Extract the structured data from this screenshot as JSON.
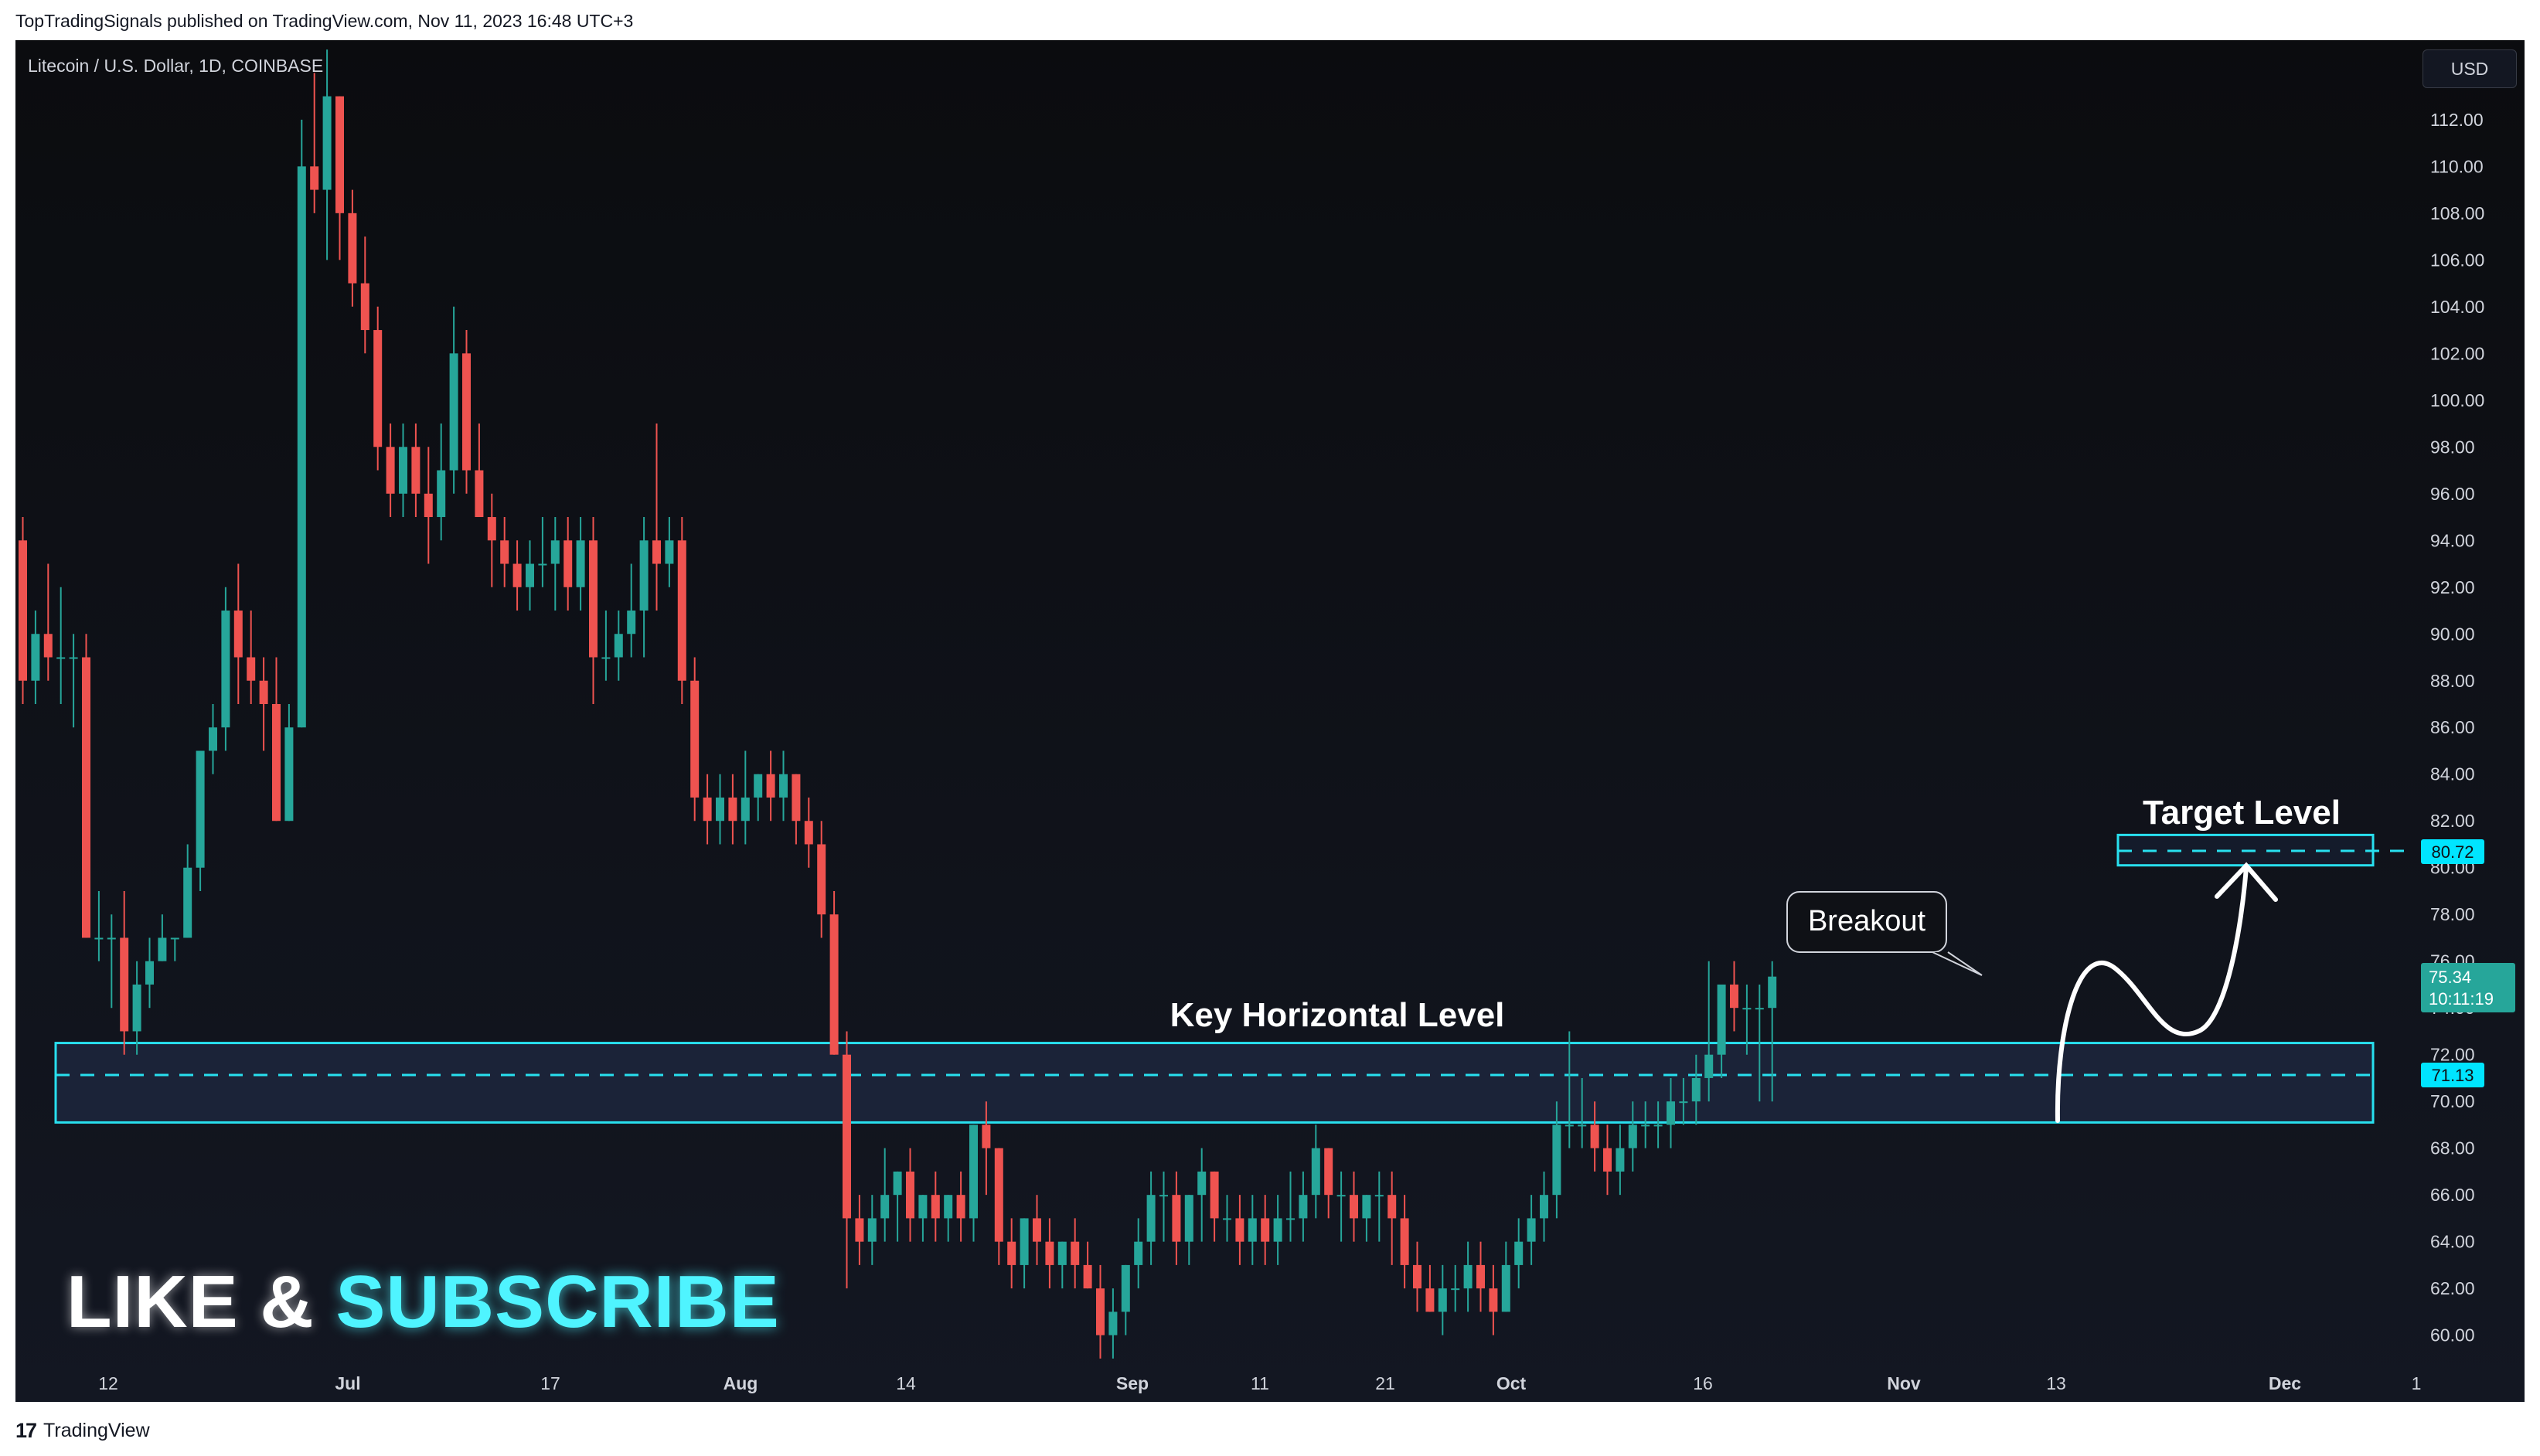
{
  "publish_line": "TopTradingSignals published on TradingView.com, Nov 11, 2023 16:48 UTC+3",
  "footer": {
    "logo": "17",
    "brand": "TradingView"
  },
  "currency_button": "USD",
  "promo": {
    "like": "LIKE &",
    "subscribe": "SUBSCRIBE"
  },
  "colors": {
    "up": "#26a69a",
    "down": "#ef5350",
    "accent": "#00e5ff",
    "panel": "#131722",
    "text": "#d1d4dc"
  },
  "chart_data": {
    "type": "candlestick",
    "title": "Litecoin / U.S. Dollar, 1D, COINBASE",
    "ylim": [
      58.6,
      115.4
    ],
    "yticks": [
      60,
      62,
      64,
      66,
      68,
      70,
      72,
      74,
      76,
      78,
      80,
      82,
      84,
      86,
      88,
      90,
      92,
      94,
      96,
      98,
      100,
      102,
      104,
      106,
      108,
      110,
      112
    ],
    "xlabels": [
      "12",
      "Jul",
      "17",
      "Aug",
      "14",
      "Sep",
      "11",
      "21",
      "Oct",
      "16",
      "Nov",
      "13",
      "Dec",
      "1"
    ],
    "price_labels": {
      "target": "80.72",
      "last": "75.34",
      "countdown": "10:11:19",
      "support": "71.13"
    },
    "annotations": {
      "target": "Target Level",
      "key": "Key Horizontal Level",
      "breakout": "Breakout"
    },
    "levels": {
      "target": 80.72,
      "support": 71.13,
      "zone_top": 72.5,
      "zone_bottom": 69.1,
      "target_zone_top": 81.4,
      "target_zone_bottom": 80.1
    },
    "ohlc": [
      [
        94,
        95,
        87,
        88
      ],
      [
        88,
        91,
        87,
        90
      ],
      [
        90,
        93,
        88,
        89
      ],
      [
        89,
        92,
        87,
        89
      ],
      [
        89,
        90,
        86,
        89
      ],
      [
        89,
        90,
        77,
        77
      ],
      [
        77,
        79,
        76,
        77
      ],
      [
        77,
        78,
        74,
        77
      ],
      [
        77,
        79,
        72,
        73
      ],
      [
        73,
        76,
        72,
        75
      ],
      [
        75,
        77,
        74,
        76
      ],
      [
        76,
        78,
        76,
        77
      ],
      [
        77,
        77,
        76,
        77
      ],
      [
        77,
        81,
        77,
        80
      ],
      [
        80,
        85,
        79,
        85
      ],
      [
        85,
        87,
        84,
        86
      ],
      [
        86,
        92,
        85,
        91
      ],
      [
        91,
        93,
        87,
        89
      ],
      [
        89,
        91,
        87,
        88
      ],
      [
        88,
        89,
        85,
        87
      ],
      [
        87,
        89,
        82,
        82
      ],
      [
        82,
        87,
        82,
        86
      ],
      [
        86,
        112,
        86,
        110
      ],
      [
        110,
        114,
        108,
        109
      ],
      [
        109,
        115,
        106,
        113
      ],
      [
        113,
        113,
        106,
        108
      ],
      [
        108,
        109,
        104,
        105
      ],
      [
        105,
        107,
        102,
        103
      ],
      [
        103,
        104,
        97,
        98
      ],
      [
        98,
        99,
        95,
        96
      ],
      [
        96,
        99,
        95,
        98
      ],
      [
        98,
        99,
        95,
        96
      ],
      [
        96,
        98,
        93,
        95
      ],
      [
        95,
        99,
        94,
        97
      ],
      [
        97,
        104,
        96,
        102
      ],
      [
        102,
        103,
        96,
        97
      ],
      [
        97,
        99,
        95,
        95
      ],
      [
        95,
        96,
        92,
        94
      ],
      [
        94,
        95,
        92,
        93
      ],
      [
        93,
        94,
        91,
        92
      ],
      [
        92,
        94,
        91,
        93
      ],
      [
        93,
        95,
        92,
        93
      ],
      [
        93,
        95,
        91,
        94
      ],
      [
        94,
        95,
        91,
        92
      ],
      [
        92,
        95,
        91,
        94
      ],
      [
        94,
        95,
        87,
        89
      ],
      [
        89,
        91,
        88,
        89
      ],
      [
        89,
        91,
        88,
        90
      ],
      [
        90,
        93,
        89,
        91
      ],
      [
        91,
        95,
        89,
        94
      ],
      [
        94,
        99,
        91,
        93
      ],
      [
        93,
        95,
        92,
        94
      ],
      [
        94,
        95,
        87,
        88
      ],
      [
        88,
        89,
        82,
        83
      ],
      [
        83,
        84,
        81,
        82
      ],
      [
        82,
        84,
        81,
        83
      ],
      [
        83,
        84,
        81,
        82
      ],
      [
        82,
        85,
        81,
        83
      ],
      [
        83,
        84,
        82,
        84
      ],
      [
        84,
        85,
        82,
        83
      ],
      [
        83,
        85,
        82,
        84
      ],
      [
        84,
        84,
        81,
        82
      ],
      [
        82,
        83,
        80,
        81
      ],
      [
        81,
        82,
        77,
        78
      ],
      [
        78,
        79,
        72,
        72
      ],
      [
        72,
        73,
        62,
        65
      ],
      [
        65,
        66,
        63,
        64
      ],
      [
        64,
        66,
        63,
        65
      ],
      [
        65,
        68,
        64,
        66
      ],
      [
        66,
        67,
        64,
        67
      ],
      [
        67,
        68,
        64,
        65
      ],
      [
        65,
        66,
        64,
        66
      ],
      [
        66,
        67,
        64,
        65
      ],
      [
        65,
        66,
        64,
        66
      ],
      [
        66,
        67,
        64,
        65
      ],
      [
        65,
        69,
        64,
        69
      ],
      [
        69,
        70,
        66,
        68
      ],
      [
        68,
        68,
        63,
        64
      ],
      [
        64,
        65,
        62,
        63
      ],
      [
        63,
        65,
        62,
        65
      ],
      [
        65,
        66,
        63,
        64
      ],
      [
        64,
        65,
        62,
        63
      ],
      [
        63,
        64,
        62,
        64
      ],
      [
        64,
        65,
        62,
        63
      ],
      [
        63,
        64,
        62,
        62
      ],
      [
        62,
        63,
        59,
        60
      ],
      [
        60,
        62,
        59,
        61
      ],
      [
        61,
        63,
        60,
        63
      ],
      [
        63,
        65,
        62,
        64
      ],
      [
        64,
        67,
        63,
        66
      ],
      [
        66,
        67,
        64,
        66
      ],
      [
        66,
        67,
        63,
        64
      ],
      [
        64,
        66,
        63,
        66
      ],
      [
        66,
        68,
        64,
        67
      ],
      [
        67,
        67,
        64,
        65
      ],
      [
        65,
        66,
        64,
        65
      ],
      [
        65,
        66,
        63,
        64
      ],
      [
        64,
        66,
        63,
        65
      ],
      [
        65,
        66,
        63,
        64
      ],
      [
        64,
        66,
        63,
        65
      ],
      [
        65,
        67,
        64,
        65
      ],
      [
        65,
        67,
        64,
        66
      ],
      [
        66,
        69,
        65,
        68
      ],
      [
        68,
        68,
        65,
        66
      ],
      [
        66,
        67,
        64,
        66
      ],
      [
        66,
        67,
        64,
        65
      ],
      [
        65,
        66,
        64,
        66
      ],
      [
        66,
        67,
        64,
        66
      ],
      [
        66,
        67,
        63,
        65
      ],
      [
        65,
        66,
        62,
        63
      ],
      [
        63,
        64,
        61,
        62
      ],
      [
        62,
        63,
        61,
        61
      ],
      [
        61,
        63,
        60,
        62
      ],
      [
        62,
        63,
        61,
        62
      ],
      [
        62,
        64,
        61,
        63
      ],
      [
        63,
        64,
        61,
        62
      ],
      [
        62,
        63,
        60,
        61
      ],
      [
        61,
        64,
        61,
        63
      ],
      [
        63,
        65,
        62,
        64
      ],
      [
        64,
        66,
        63,
        65
      ],
      [
        65,
        67,
        64,
        66
      ],
      [
        66,
        70,
        65,
        69
      ],
      [
        69,
        73,
        68,
        69
      ],
      [
        69,
        71,
        68,
        69
      ],
      [
        69,
        70,
        67,
        68
      ],
      [
        68,
        69,
        66,
        67
      ],
      [
        67,
        69,
        66,
        68
      ],
      [
        68,
        70,
        67,
        69
      ],
      [
        69,
        70,
        68,
        69
      ],
      [
        69,
        70,
        68,
        69
      ],
      [
        69,
        71,
        68,
        70
      ],
      [
        70,
        71,
        69,
        70
      ],
      [
        70,
        72,
        69,
        71
      ],
      [
        71,
        76,
        70,
        72
      ],
      [
        72,
        75,
        71,
        75
      ],
      [
        75,
        76,
        73,
        74
      ],
      [
        74,
        75,
        72,
        74
      ],
      [
        74,
        75,
        70,
        74
      ],
      [
        74,
        76,
        70,
        75.34
      ]
    ]
  }
}
